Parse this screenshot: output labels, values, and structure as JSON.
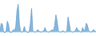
{
  "chart_data": {
    "type": "area",
    "values": [
      0.55,
      0.9,
      0.85,
      0.5,
      0.45,
      0.55,
      1.0,
      0.85,
      0.5,
      0.45,
      0.52,
      0.6,
      0.55,
      0.75,
      1.5,
      1.8,
      0.85,
      0.5,
      0.48,
      0.52,
      0.75,
      0.55,
      0.5,
      0.45,
      0.52,
      0.9,
      1.6,
      0.55,
      0.5,
      0.48,
      0.52,
      0.6,
      0.55,
      0.5,
      0.48,
      0.52,
      0.55,
      0.7,
      0.55,
      0.5,
      0.48,
      0.52,
      0.55,
      0.6,
      0.55,
      0.8,
      1.3,
      1.0,
      0.55,
      0.5,
      0.48,
      0.52,
      0.55,
      0.5,
      0.48,
      0.52,
      1.2,
      0.9,
      0.55,
      0.5,
      0.48,
      0.52,
      0.55,
      0.7,
      0.6,
      0.55,
      0.5,
      0.48,
      0.7,
      0.55,
      0.6,
      0.9,
      0.8,
      0.55,
      0.5,
      0.48,
      0.55,
      0.6,
      0.55,
      0.5
    ],
    "baseline": 0.5,
    "color": "#5599cc",
    "xlim": [
      0,
      79
    ],
    "ylim": [
      0.3,
      2.0
    ],
    "grid": false,
    "tick_labels": false
  }
}
